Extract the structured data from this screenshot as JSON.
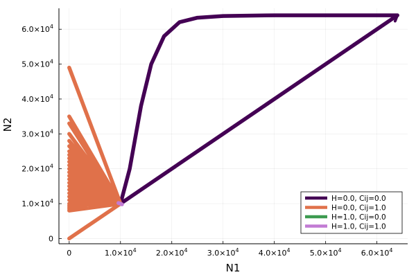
{
  "chart_data": {
    "type": "line",
    "title": "",
    "xlabel": "N1",
    "ylabel": "N2",
    "xlim": [
      -2000,
      66000
    ],
    "ylim": [
      -1500,
      66000
    ],
    "x_ticks": [
      {
        "value": 0,
        "mantissa": "0",
        "exponent": ""
      },
      {
        "value": 10000,
        "mantissa": "1.0×10",
        "exponent": "4"
      },
      {
        "value": 20000,
        "mantissa": "2.0×10",
        "exponent": "4"
      },
      {
        "value": 30000,
        "mantissa": "3.0×10",
        "exponent": "4"
      },
      {
        "value": 40000,
        "mantissa": "4.0×10",
        "exponent": "4"
      },
      {
        "value": 50000,
        "mantissa": "5.0×10",
        "exponent": "4"
      },
      {
        "value": 60000,
        "mantissa": "6.0×10",
        "exponent": "4"
      }
    ],
    "y_ticks": [
      {
        "value": 0,
        "mantissa": "0",
        "exponent": ""
      },
      {
        "value": 10000,
        "mantissa": "1.0×10",
        "exponent": "4"
      },
      {
        "value": 20000,
        "mantissa": "2.0×10",
        "exponent": "4"
      },
      {
        "value": 30000,
        "mantissa": "3.0×10",
        "exponent": "4"
      },
      {
        "value": 40000,
        "mantissa": "4.0×10",
        "exponent": "4"
      },
      {
        "value": 50000,
        "mantissa": "5.0×10",
        "exponent": "4"
      },
      {
        "value": 60000,
        "mantissa": "6.0×10",
        "exponent": "4"
      }
    ],
    "grid": true,
    "legend_position": "bottom-right",
    "series": [
      {
        "name": "H=0.0, Cij=0.0",
        "color": "#440154",
        "arrow_end": true,
        "x": [
          10000,
          11800,
          14000,
          16000,
          18500,
          21500,
          25000,
          30000,
          40000,
          50000,
          64000,
          10000,
          64000
        ],
        "y": [
          10000,
          20000,
          38000,
          50000,
          58000,
          62000,
          63300,
          63800,
          64000,
          64000,
          64000,
          10000,
          64000
        ]
      },
      {
        "name": "H=0.0, Cij=1.0",
        "color": "#e0714a",
        "arrow_end": false,
        "x": [
          0,
          10000,
          0,
          10000,
          0,
          10000,
          0,
          10000,
          0,
          10000,
          0,
          10000,
          0,
          10000,
          0,
          10000,
          0,
          10000,
          0,
          10000,
          0,
          10000,
          0,
          10000,
          0,
          10000,
          0,
          10000,
          0,
          10000,
          0,
          10000,
          0,
          10000,
          0,
          10000,
          0,
          10000,
          0,
          10000,
          0,
          10000,
          0,
          10000,
          0,
          10000,
          0,
          10000,
          0,
          10000,
          0,
          10000,
          0
        ],
        "y": [
          0,
          10000,
          49000,
          10000,
          35000,
          10000,
          33000,
          10000,
          30000,
          10000,
          28000,
          10000,
          26500,
          10000,
          25000,
          10000,
          24000,
          10000,
          23000,
          10000,
          22000,
          10000,
          21000,
          10000,
          20000,
          10000,
          19000,
          10000,
          18000,
          10000,
          17000,
          10000,
          16000,
          10000,
          15000,
          10000,
          14000,
          10000,
          13000,
          10000,
          12000,
          10000,
          11000,
          10000,
          10000,
          10000,
          9500,
          10000,
          9000,
          10000,
          8500,
          10000,
          8000
        ]
      },
      {
        "name": "H=1.0, Cij=0.0",
        "color": "#3d9a50",
        "arrow_end": false,
        "x": [
          10000
        ],
        "y": [
          10000
        ]
      },
      {
        "name": "H=1.0, Cij=1.0",
        "color": "#c27bd4",
        "arrow_end": false,
        "x": [
          9600,
          10000,
          10300
        ],
        "y": [
          10200,
          10000,
          9800
        ]
      }
    ]
  }
}
